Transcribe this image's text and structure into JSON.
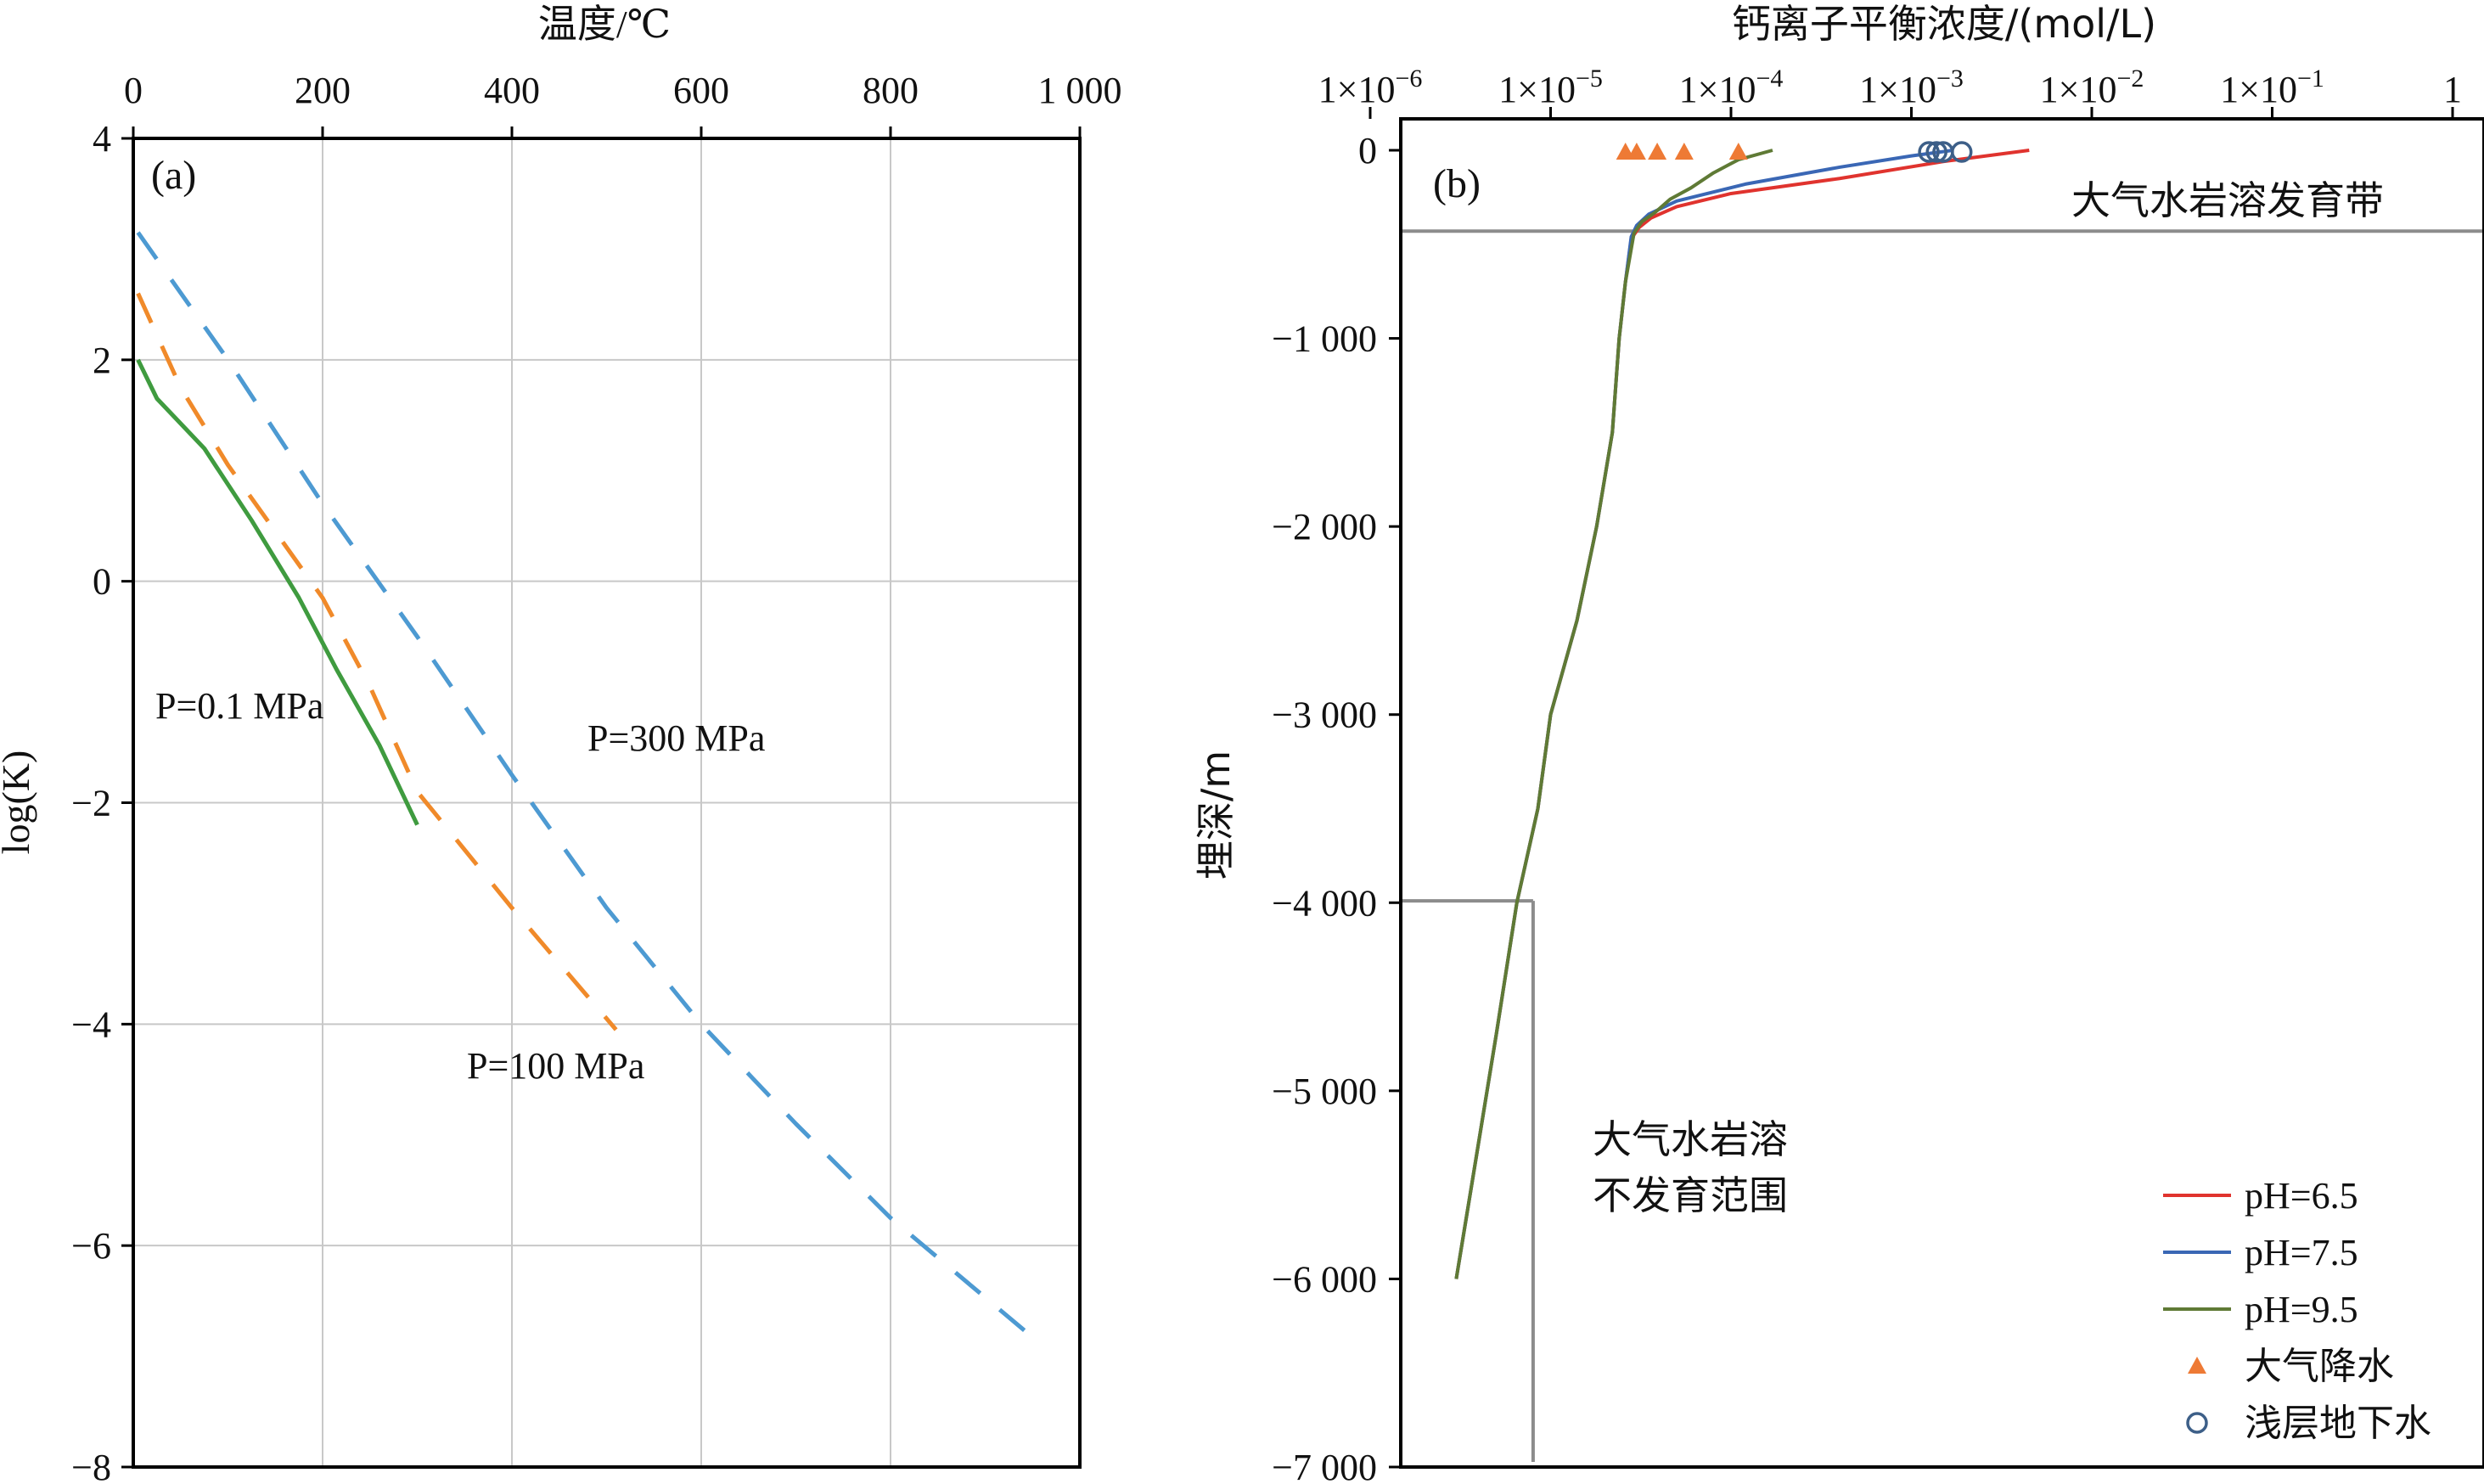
{
  "chart_data": [
    {
      "panel": "(a)",
      "type": "line",
      "xlabel": "温度/℃",
      "ylabel": "log(K)",
      "xlim": [
        0,
        1000
      ],
      "ylim": [
        -8,
        4
      ],
      "xticks": [
        "0",
        "200",
        "400",
        "600",
        "800",
        "1 000"
      ],
      "xtick_values": [
        0,
        200,
        400,
        600,
        800,
        1000
      ],
      "yticks": [
        "4",
        "2",
        "0",
        "−2",
        "−4",
        "−6",
        "−8"
      ],
      "ytick_values": [
        4,
        2,
        0,
        -2,
        -4,
        -6,
        -8
      ],
      "grid": true,
      "series": [
        {
          "label": "P=0.1 MPa",
          "color": "#3f9b3f",
          "dash": "solid",
          "x": [
            5,
            25,
            75,
            125,
            175,
            215,
            260,
            300
          ],
          "y": [
            2.0,
            1.65,
            1.2,
            0.55,
            -0.15,
            -0.8,
            -1.48,
            -2.2
          ]
        },
        {
          "label": "P=100 MPa",
          "color": "#f08a2a",
          "dash": "dashed",
          "x": [
            5,
            50,
            100,
            150,
            200,
            250,
            300,
            400,
            510
          ],
          "y": [
            2.6,
            1.75,
            1.05,
            0.45,
            -0.15,
            -0.95,
            -1.9,
            -2.95,
            -4.05
          ]
        },
        {
          "label": "P=300 MPa",
          "color": "#4d9ad2",
          "dash": "dashed",
          "x": [
            5,
            100,
            200,
            300,
            400,
            500,
            600,
            700,
            800,
            960
          ],
          "y": [
            3.15,
            2.0,
            0.7,
            -0.5,
            -1.75,
            -2.95,
            -4.0,
            -4.9,
            -5.75,
            -6.9
          ]
        }
      ],
      "annotations": [
        "P=0.1 MPa",
        "P=300 MPa",
        "P=100 MPa"
      ]
    },
    {
      "panel": "(b)",
      "type": "line",
      "xlabel": "钙离子平衡浓度/(mol/L)",
      "ylabel": "埋深/m",
      "xscale": "log",
      "xlim": [
        1e-06,
        1
      ],
      "ylim": [
        -7000,
        0
      ],
      "xtick_values": [
        1e-06,
        1e-05,
        0.0001,
        0.001,
        0.01,
        0.1,
        1
      ],
      "xtick_base": [
        "1×10",
        "1×10",
        "1×10",
        "1×10",
        "1×10",
        "1×10",
        "1"
      ],
      "xtick_exp": [
        "−6",
        "−5",
        "−4",
        "−3",
        "−2",
        "−1",
        ""
      ],
      "yticks": [
        "0",
        "−1 000",
        "−2 000",
        "−3 000",
        "−4 000",
        "−5 000",
        "−6 000",
        "−7 000"
      ],
      "ytick_values": [
        0,
        -1000,
        -2000,
        -3000,
        -4000,
        -5000,
        -6000,
        -7000
      ],
      "grid": false,
      "series": [
        {
          "name": "pH=6.5",
          "color": "#e0332e",
          "x": [
            0.0045,
            0.0015,
            0.0004,
            0.0001,
            5e-05,
            3.6e-05,
            3.1e-05,
            2.8e-05,
            2.6e-05,
            2.4e-05,
            2.2e-05,
            1.8e-05,
            1.4e-05,
            1e-05,
            8.5e-06,
            6.5e-06,
            5e-06,
            3.8e-06,
            3e-06
          ],
          "y": [
            0,
            -60,
            -150,
            -230,
            -300,
            -360,
            -410,
            -470,
            -700,
            -1000,
            -1500,
            -2000,
            -2500,
            -3000,
            -3500,
            -4000,
            -4700,
            -5400,
            -6000
          ]
        },
        {
          "name": "pH=7.5",
          "color": "#3a67b5",
          "x": [
            0.0017,
            0.001,
            0.0004,
            0.00012,
            5e-05,
            3.5e-05,
            3e-05,
            2.8e-05,
            2.6e-05,
            2.4e-05,
            2.2e-05,
            1.8e-05,
            1.4e-05,
            1e-05,
            8.5e-06,
            6.5e-06,
            5e-06,
            3.8e-06,
            3e-06
          ],
          "y": [
            0,
            -30,
            -90,
            -180,
            -270,
            -340,
            -400,
            -460,
            -700,
            -1000,
            -1500,
            -2000,
            -2500,
            -3000,
            -3500,
            -4000,
            -4700,
            -5400,
            -6000
          ]
        },
        {
          "name": "pH=9.5",
          "color": "#5f7a35",
          "x": [
            0.00017,
            0.00011,
            8e-05,
            6e-05,
            4.6e-05,
            3.8e-05,
            3.2e-05,
            2.9e-05,
            2.6e-05,
            2.4e-05,
            2.2e-05,
            1.8e-05,
            1.4e-05,
            1e-05,
            8.5e-06,
            6.5e-06,
            5e-06,
            3.8e-06,
            3e-06
          ],
          "y": [
            0,
            -50,
            -120,
            -200,
            -260,
            -330,
            -380,
            -440,
            -700,
            -1000,
            -1500,
            -2000,
            -2500,
            -3000,
            -3500,
            -4000,
            -4700,
            -5400,
            -6000
          ]
        }
      ],
      "markers": [
        {
          "name": "大气降水",
          "shape": "triangle",
          "color": "#ee7a35",
          "x": [
            2.6e-05,
            3e-05,
            3.9e-05,
            5.5e-05,
            0.00011
          ],
          "y": [
            0,
            0,
            0,
            0,
            0
          ]
        },
        {
          "name": "浅层地下水",
          "shape": "circle",
          "color": "#3d5f88",
          "x": [
            0.00125,
            0.00138,
            0.0015,
            0.0019
          ],
          "y": [
            0,
            0,
            0,
            0
          ]
        }
      ],
      "reference_lines": {
        "horizontal_depths": [
          -430,
          -3990
        ],
        "vertical_x": 8e-06,
        "color": "#8c8c8c"
      },
      "zone_labels": {
        "upper": "大气水岩溶发育带",
        "lower_line1": "大气水岩溶",
        "lower_line2": "不发育范围"
      },
      "legend_position": "bottom-right"
    }
  ]
}
